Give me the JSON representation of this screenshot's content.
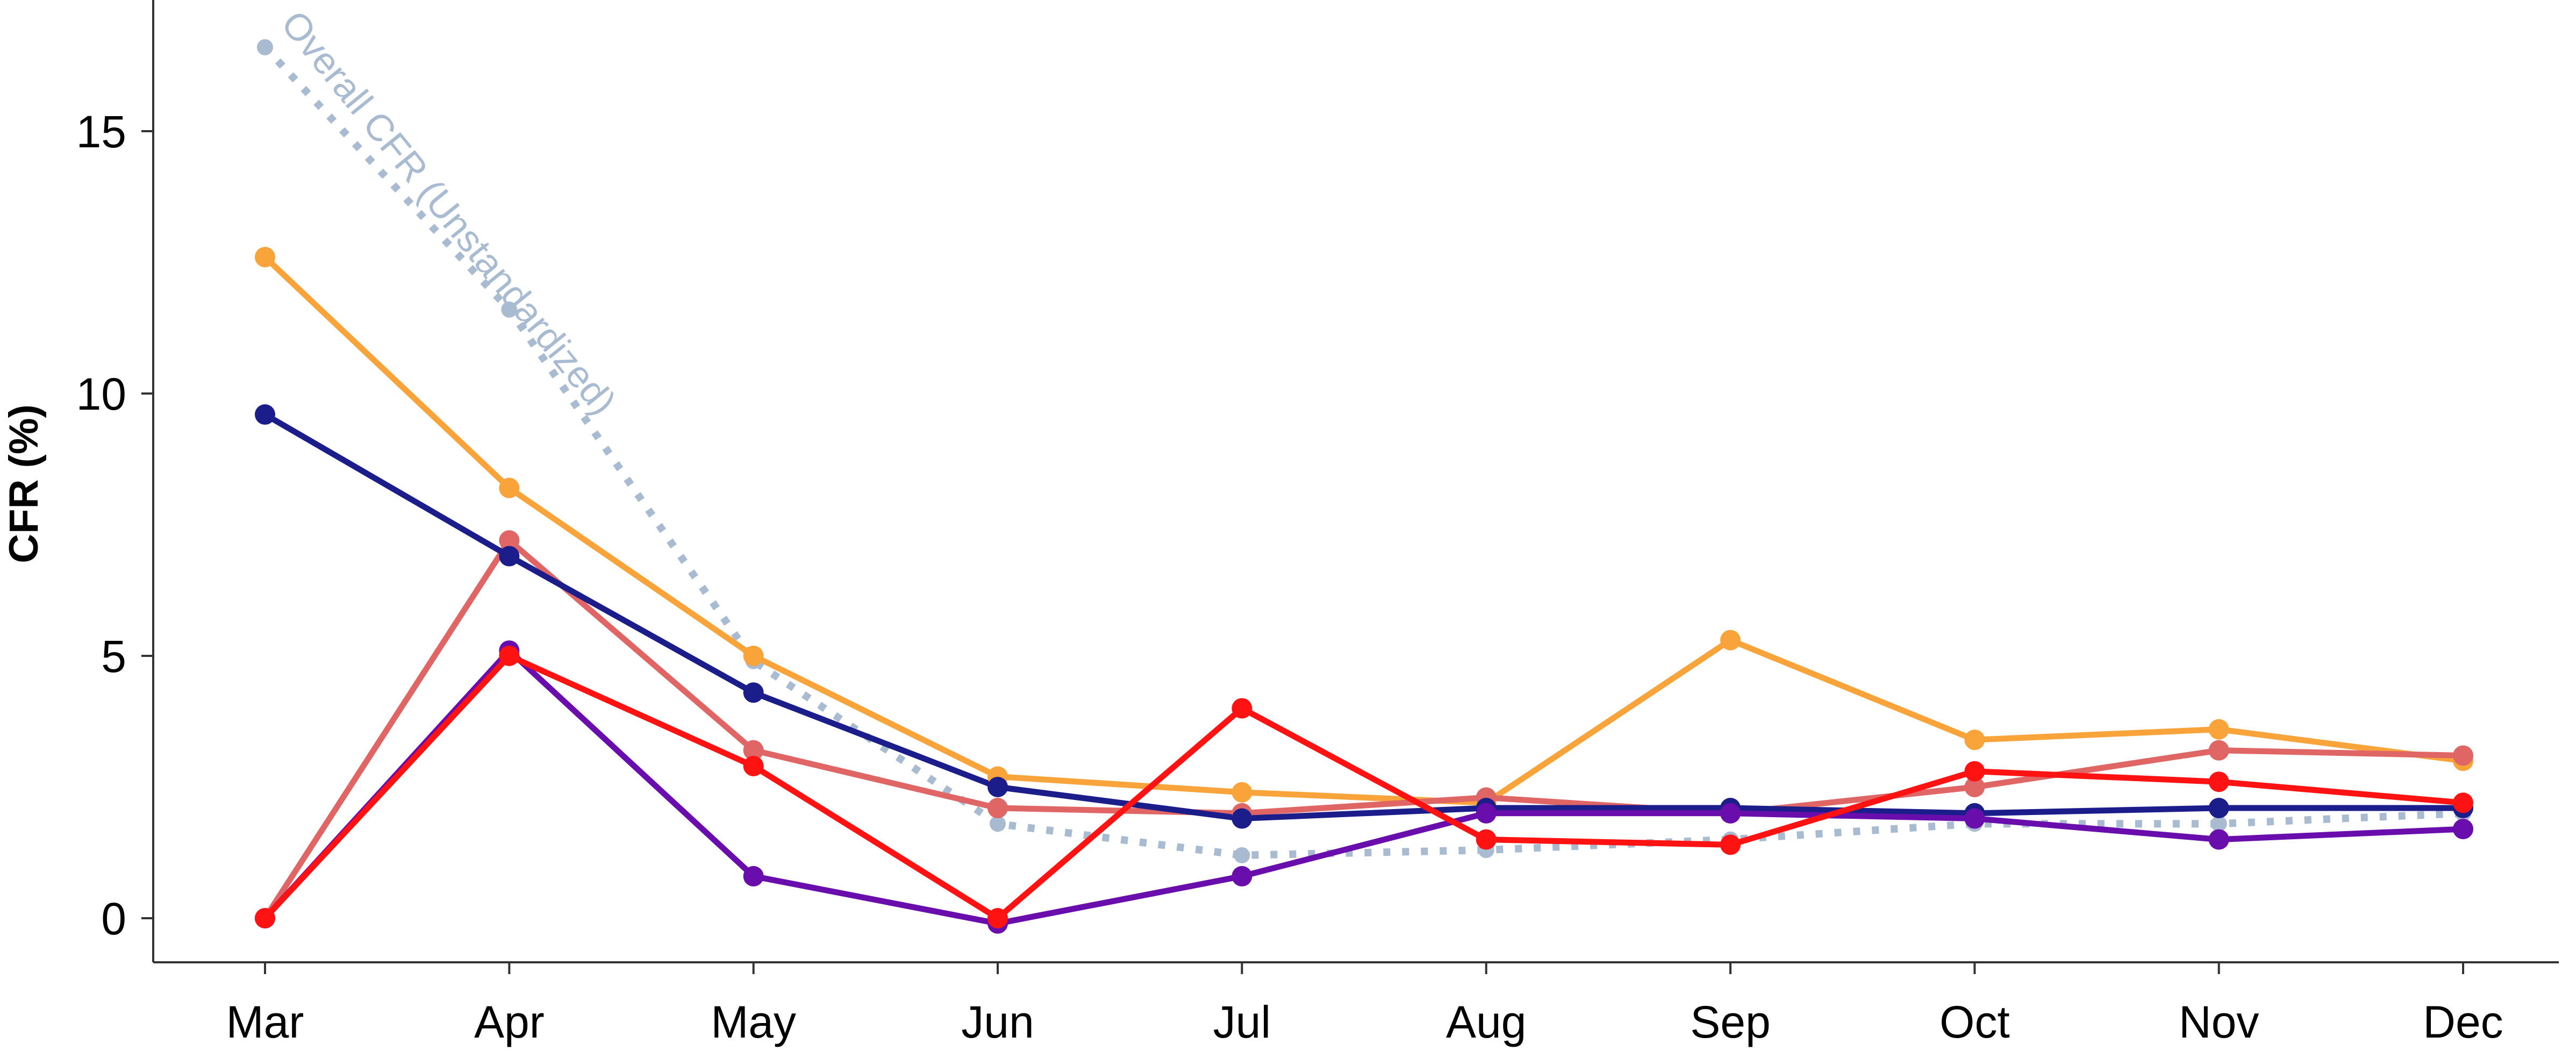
{
  "chart_data": {
    "type": "line",
    "title": "",
    "xlabel": "",
    "ylabel": "CFR (%)",
    "categories": [
      "Mar",
      "Apr",
      "May",
      "Jun",
      "Jul",
      "Aug",
      "Sep",
      "Oct",
      "Nov",
      "Dec"
    ],
    "yticks": [
      0,
      5,
      10,
      15
    ],
    "ytick_labels": [
      "0",
      "5",
      "10",
      "15"
    ],
    "ylim": [
      -0.8,
      17.6
    ],
    "grid": false,
    "legend": "none",
    "annotation": "Overall CFR (Unstandardized)",
    "series": [
      {
        "color": "#f9a43a",
        "style": "solid",
        "values": [
          12.6,
          8.2,
          5.0,
          2.7,
          2.4,
          2.2,
          5.3,
          3.4,
          3.6,
          3.0
        ]
      },
      {
        "color": "#1b1e8a",
        "style": "solid",
        "values": [
          9.6,
          6.9,
          4.3,
          2.5,
          1.9,
          2.1,
          2.1,
          2.0,
          2.1,
          2.1
        ]
      },
      {
        "color": "#e06666",
        "style": "solid",
        "values": [
          0.0,
          7.2,
          3.2,
          2.1,
          2.0,
          2.3,
          2.0,
          2.5,
          3.2,
          3.1
        ]
      },
      {
        "color": "#ff1212",
        "style": "solid",
        "values": [
          0.0,
          5.0,
          2.9,
          0.0,
          4.0,
          1.5,
          1.4,
          2.8,
          2.6,
          2.2
        ]
      },
      {
        "color": "#6a0dad",
        "style": "solid",
        "values": [
          0.0,
          5.1,
          0.8,
          -0.1,
          0.8,
          2.0,
          2.0,
          1.9,
          1.5,
          1.7
        ]
      },
      {
        "color": "#a8bbd0",
        "style": "dotted",
        "values": [
          16.6,
          11.6,
          4.9,
          1.8,
          1.2,
          1.3,
          1.5,
          1.8,
          1.8,
          2.0
        ]
      }
    ]
  }
}
